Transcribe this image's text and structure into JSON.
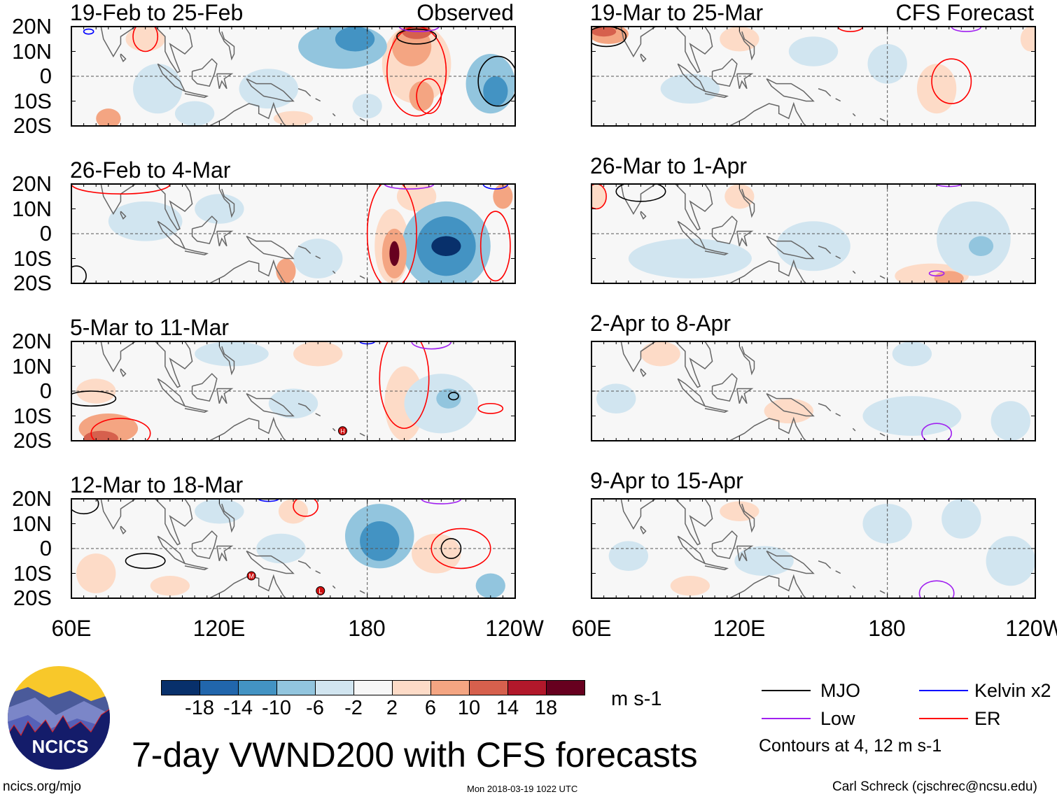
{
  "title": "7-day VWND200 with CFS forecasts",
  "units": "m s-1",
  "website": "ncics.org/mjo",
  "timestamp": "Mon 2018-03-19 1022 UTC",
  "author": "Carl Schreck (cjschrec@ncsu.edu)",
  "logo_text": "NCICS",
  "contour_note": "Contours at 4, 12 m s-1",
  "column_labels": {
    "observed": "Observed",
    "forecast": "CFS Forecast"
  },
  "y_ticks": [
    "20N",
    "10N",
    "0",
    "10S",
    "20S"
  ],
  "x_ticks": [
    "60E",
    "120E",
    "180",
    "120W"
  ],
  "colorbar": {
    "colors": [
      "#08306b",
      "#2166ac",
      "#4393c3",
      "#92c5de",
      "#d1e5f0",
      "#f7f7f7",
      "#fddbc7",
      "#f4a582",
      "#d6604d",
      "#b2182b",
      "#67001f"
    ],
    "labels": [
      "-18",
      "-14",
      "-10",
      "-6",
      "-2",
      "2",
      "6",
      "10",
      "14",
      "18"
    ]
  },
  "legend": [
    {
      "label": "MJO",
      "color": "#000000"
    },
    {
      "label": "Kelvin x2",
      "color": "#0000ff"
    },
    {
      "label": "Low",
      "color": "#a020f0"
    },
    {
      "label": "ER",
      "color": "#ff0000"
    }
  ],
  "contour_colors": {
    "MJO": "#000000",
    "Kelvin": "#0000ff",
    "Low": "#a020f0",
    "ER": "#ff0000"
  },
  "chart_data": {
    "type": "heatmap",
    "lon_range": [
      60,
      240
    ],
    "lat_range": [
      -20,
      20
    ],
    "panels": [
      {
        "title": "19-Feb to 25-Feb",
        "column": "observed",
        "fills": [
          [
            140,
            -5,
            12,
            8,
            -3
          ],
          [
            95,
            -5,
            10,
            10,
            -3
          ],
          [
            110,
            -15,
            8,
            5,
            -3
          ],
          [
            90,
            15,
            8,
            5,
            3
          ],
          [
            150,
            -17,
            8,
            3,
            4
          ],
          [
            180,
            -12,
            6,
            5,
            -6
          ],
          [
            75,
            -17,
            5,
            4,
            6
          ],
          [
            170,
            12,
            18,
            9,
            -7
          ],
          [
            175,
            15,
            8,
            5,
            -12
          ],
          [
            230,
            -3,
            10,
            12,
            -7
          ],
          [
            232,
            -6,
            5,
            6,
            -12
          ],
          [
            200,
            5,
            14,
            16,
            4
          ],
          [
            198,
            12,
            8,
            8,
            8
          ],
          [
            202,
            -8,
            5,
            6,
            8
          ],
          [
            200,
            18,
            6,
            3,
            12
          ]
        ],
        "contours": [
          [
            200,
            2,
            12,
            18,
            "ER"
          ],
          [
            205,
            -8,
            5,
            7,
            "ER"
          ],
          [
            90,
            16,
            5,
            6,
            "ER"
          ],
          [
            200,
            16,
            8,
            3,
            "MJO"
          ],
          [
            233,
            -2,
            8,
            10,
            "MJO"
          ],
          [
            201,
            20,
            8,
            2,
            "Low"
          ],
          [
            67,
            18,
            2,
            1,
            "Kelvin"
          ]
        ],
        "markers": []
      },
      {
        "title": "26-Feb to 4-Mar",
        "column": "observed",
        "fills": [
          [
            90,
            5,
            15,
            8,
            -3
          ],
          [
            120,
            10,
            10,
            6,
            -3
          ],
          [
            160,
            -10,
            10,
            8,
            -3
          ],
          [
            200,
            15,
            8,
            6,
            4
          ],
          [
            147,
            -15,
            4,
            5,
            6
          ],
          [
            212,
            -5,
            18,
            18,
            -7
          ],
          [
            212,
            -5,
            12,
            12,
            -12
          ],
          [
            212,
            -5,
            6,
            4,
            -19
          ],
          [
            190,
            -5,
            7,
            15,
            4
          ],
          [
            191,
            -8,
            5,
            10,
            8
          ],
          [
            191,
            -8,
            2,
            5,
            19
          ],
          [
            235,
            15,
            4,
            5,
            8
          ]
        ],
        "contours": [
          [
            190,
            0,
            10,
            22,
            "ER"
          ],
          [
            232,
            -5,
            6,
            14,
            "ER"
          ],
          [
            80,
            20,
            20,
            4,
            "ER"
          ],
          [
            62,
            -17,
            4,
            4,
            "MJO"
          ],
          [
            197,
            20,
            10,
            2,
            "Low"
          ],
          [
            232,
            20,
            5,
            2,
            "Kelvin"
          ]
        ],
        "markers": []
      },
      {
        "title": "5-Mar to 11-Mar",
        "column": "observed",
        "fills": [
          [
            125,
            15,
            15,
            5,
            -5
          ],
          [
            150,
            -5,
            10,
            6,
            -3
          ],
          [
            160,
            15,
            10,
            5,
            3
          ],
          [
            210,
            -5,
            15,
            12,
            -5
          ],
          [
            213,
            -3,
            5,
            4,
            -8
          ],
          [
            195,
            -5,
            8,
            15,
            4
          ],
          [
            75,
            -15,
            12,
            6,
            8
          ],
          [
            72,
            -19,
            7,
            3,
            12
          ],
          [
            70,
            0,
            8,
            5,
            3
          ]
        ],
        "contours": [
          [
            195,
            5,
            10,
            20,
            "ER"
          ],
          [
            80,
            -17,
            12,
            6,
            "ER"
          ],
          [
            68,
            -3,
            10,
            3,
            "MJO"
          ],
          [
            215,
            -2,
            2,
            1.5,
            "MJO"
          ],
          [
            230,
            -7,
            5,
            2,
            "ER"
          ],
          [
            206,
            20,
            8,
            3,
            "Low"
          ],
          [
            180,
            20,
            3,
            1,
            "Kelvin"
          ]
        ],
        "markers": [
          [
            170,
            -16,
            "H"
          ]
        ]
      },
      {
        "title": "12-Mar to 18-Mar",
        "column": "observed",
        "fills": [
          [
            120,
            15,
            10,
            5,
            -3
          ],
          [
            145,
            0,
            10,
            6,
            -3
          ],
          [
            150,
            15,
            6,
            5,
            4
          ],
          [
            70,
            -10,
            8,
            8,
            4
          ],
          [
            208,
            -2,
            10,
            8,
            4
          ],
          [
            185,
            5,
            14,
            13,
            -7
          ],
          [
            185,
            3,
            8,
            8,
            -12
          ],
          [
            230,
            -15,
            6,
            5,
            -8
          ],
          [
            100,
            -15,
            8,
            4,
            3
          ]
        ],
        "contours": [
          [
            218,
            0,
            12,
            8,
            "ER"
          ],
          [
            214,
            0,
            4,
            4,
            "MJO"
          ],
          [
            90,
            -5,
            8,
            3,
            "MJO"
          ],
          [
            155,
            17,
            5,
            4,
            "ER"
          ],
          [
            210,
            20,
            8,
            2,
            "Low"
          ],
          [
            65,
            18,
            6,
            4,
            "MJO"
          ],
          [
            140,
            20,
            4,
            1,
            "Kelvin"
          ]
        ],
        "markers": [
          [
            133,
            -11,
            "M"
          ],
          [
            161,
            -17,
            "L"
          ]
        ]
      },
      {
        "title": "19-Mar to 25-Mar",
        "column": "forecast",
        "fills": [
          [
            100,
            -5,
            12,
            6,
            -3
          ],
          [
            150,
            10,
            10,
            6,
            -3
          ],
          [
            180,
            5,
            8,
            8,
            -3
          ],
          [
            120,
            15,
            8,
            5,
            3
          ],
          [
            200,
            -5,
            8,
            10,
            4
          ],
          [
            238,
            15,
            4,
            5,
            5
          ],
          [
            67,
            17,
            8,
            4,
            8
          ],
          [
            65,
            18,
            5,
            2,
            13
          ]
        ],
        "contours": [
          [
            206,
            -2,
            8,
            9,
            "ER"
          ],
          [
            66,
            16,
            8,
            4,
            "MJO"
          ],
          [
            212,
            20,
            6,
            2,
            "Low"
          ],
          [
            165,
            20,
            5,
            2,
            "ER"
          ]
        ],
        "markers": []
      },
      {
        "title": "26-Mar to 1-Apr",
        "column": "forecast",
        "fills": [
          [
            100,
            -10,
            25,
            8,
            -3
          ],
          [
            150,
            -5,
            15,
            10,
            -3
          ],
          [
            215,
            -2,
            15,
            15,
            -5
          ],
          [
            218,
            -5,
            5,
            4,
            -9
          ],
          [
            198,
            -17,
            15,
            5,
            4
          ],
          [
            205,
            -18,
            6,
            3,
            9
          ],
          [
            62,
            15,
            4,
            5,
            5
          ],
          [
            120,
            15,
            6,
            5,
            3
          ]
        ],
        "contours": [
          [
            62,
            15,
            4,
            5,
            "ER"
          ],
          [
            80,
            17,
            10,
            4,
            "MJO"
          ],
          [
            200,
            -16,
            3,
            1,
            "Low"
          ],
          [
            205,
            20,
            5,
            1,
            "Low"
          ]
        ],
        "markers": []
      },
      {
        "title": "2-Apr to 8-Apr",
        "column": "forecast",
        "fills": [
          [
            70,
            -3,
            8,
            6,
            -3
          ],
          [
            72,
            -3,
            3,
            3,
            -5
          ],
          [
            88,
            15,
            8,
            5,
            3
          ],
          [
            89,
            16,
            4,
            3,
            5
          ],
          [
            190,
            15,
            8,
            5,
            -5
          ],
          [
            190,
            -10,
            20,
            8,
            -3
          ],
          [
            230,
            -12,
            8,
            8,
            -3
          ],
          [
            140,
            -8,
            10,
            5,
            3
          ]
        ],
        "contours": [
          [
            200,
            -17,
            6,
            4,
            "Low"
          ]
        ],
        "markers": []
      },
      {
        "title": "9-Apr to 15-Apr",
        "column": "forecast",
        "fills": [
          [
            75,
            -3,
            8,
            6,
            -3
          ],
          [
            130,
            -5,
            12,
            6,
            -3
          ],
          [
            180,
            10,
            10,
            8,
            -3
          ],
          [
            210,
            12,
            8,
            8,
            -3
          ],
          [
            230,
            -5,
            10,
            10,
            -3
          ],
          [
            120,
            15,
            8,
            4,
            3
          ],
          [
            100,
            -15,
            8,
            4,
            3
          ]
        ],
        "contours": [
          [
            200,
            -18,
            7,
            5,
            "Low"
          ]
        ],
        "markers": []
      }
    ]
  },
  "coastlines": [
    [
      [
        68,
        20
      ],
      [
        72,
        20
      ],
      [
        73,
        15
      ],
      [
        77,
        8
      ],
      [
        80,
        13
      ],
      [
        80,
        16
      ],
      [
        86,
        20
      ]
    ],
    [
      [
        80,
        9
      ],
      [
        82,
        7
      ],
      [
        81,
        6
      ],
      [
        80,
        8
      ],
      [
        80,
        9
      ]
    ],
    [
      [
        94,
        20
      ],
      [
        98,
        16
      ],
      [
        98,
        10
      ],
      [
        100,
        6
      ],
      [
        103,
        1.5
      ],
      [
        104,
        2
      ],
      [
        102,
        7
      ],
      [
        100,
        13
      ],
      [
        103,
        11
      ],
      [
        106,
        9
      ],
      [
        109,
        12
      ],
      [
        108,
        17
      ],
      [
        106,
        20
      ]
    ],
    [
      [
        95,
        5
      ],
      [
        98,
        3
      ],
      [
        104,
        -2
      ],
      [
        106,
        -6
      ],
      [
        102,
        -4
      ],
      [
        97,
        1
      ],
      [
        95,
        5
      ]
    ],
    [
      [
        106,
        -6
      ],
      [
        110,
        -7
      ],
      [
        115,
        -8
      ],
      [
        114,
        -8.5
      ],
      [
        106,
        -7
      ]
    ],
    [
      [
        109,
        2
      ],
      [
        113,
        3
      ],
      [
        117,
        7
      ],
      [
        119,
        5
      ],
      [
        118,
        1
      ],
      [
        116,
        -4
      ],
      [
        111,
        -3
      ],
      [
        109,
        -1
      ],
      [
        109,
        2
      ]
    ],
    [
      [
        119,
        1
      ],
      [
        125,
        1
      ],
      [
        122,
        -1
      ],
      [
        123,
        -5
      ],
      [
        121,
        -2
      ],
      [
        120,
        -5
      ],
      [
        119,
        1
      ]
    ],
    [
      [
        120,
        18
      ],
      [
        122,
        14
      ],
      [
        124,
        12
      ],
      [
        125,
        7
      ],
      [
        126,
        9
      ],
      [
        126,
        12
      ],
      [
        122,
        15
      ],
      [
        121,
        18
      ]
    ],
    [
      [
        131,
        -1
      ],
      [
        135,
        -3
      ],
      [
        141,
        -3
      ],
      [
        146,
        -6
      ],
      [
        150,
        -10
      ],
      [
        147,
        -10
      ],
      [
        143,
        -9
      ],
      [
        138,
        -8
      ],
      [
        133,
        -4
      ],
      [
        131,
        -1
      ]
    ],
    [
      [
        114,
        -22
      ],
      [
        116,
        -20
      ],
      [
        122,
        -17
      ],
      [
        126,
        -14
      ],
      [
        130,
        -12
      ],
      [
        132,
        -11
      ],
      [
        136,
        -12
      ],
      [
        136,
        -15
      ],
      [
        140,
        -17
      ],
      [
        142,
        -11
      ],
      [
        143,
        -14
      ],
      [
        146,
        -19
      ],
      [
        147,
        -20
      ]
    ],
    [
      [
        152,
        -5
      ],
      [
        155,
        -6
      ],
      [
        157,
        -8
      ]
    ],
    [
      [
        159,
        -9
      ],
      [
        161,
        -10
      ]
    ],
    [
      [
        166,
        -15
      ],
      [
        167,
        -16
      ]
    ],
    [
      [
        177,
        -17
      ],
      [
        179,
        -18
      ]
    ],
    [
      [
        165,
        -21
      ],
      [
        167,
        -22
      ]
    ]
  ]
}
